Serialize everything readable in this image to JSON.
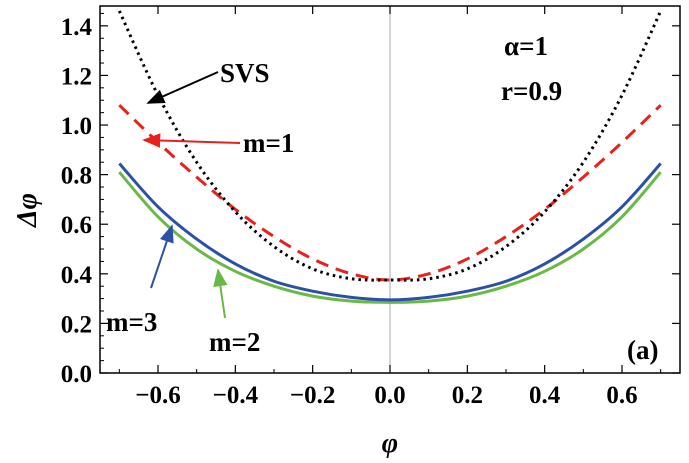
{
  "chart_data": {
    "type": "line",
    "xlabel": "φ",
    "ylabel": "Δφ",
    "xlim": [
      -0.75,
      0.75
    ],
    "ylim": [
      0.0,
      1.48
    ],
    "x_ticks": [
      -0.6,
      -0.4,
      -0.2,
      0.0,
      0.2,
      0.4,
      0.6
    ],
    "x_tick_labels": [
      "−0.6",
      "−0.4",
      "−0.2",
      "0.0",
      "0.2",
      "0.4",
      "0.6"
    ],
    "y_ticks": [
      0.0,
      0.2,
      0.4,
      0.6,
      0.8,
      1.0,
      1.2,
      1.4
    ],
    "y_tick_labels": [
      "0.0",
      "0.2",
      "0.4",
      "0.6",
      "0.8",
      "1.0",
      "1.2",
      "1.4"
    ],
    "x": [
      -0.7,
      -0.6,
      -0.5,
      -0.4,
      -0.3,
      -0.2,
      -0.1,
      0.0,
      0.1,
      0.2,
      0.3,
      0.4,
      0.5,
      0.6,
      0.7
    ],
    "series": [
      {
        "name": "SVS",
        "color": "#000000",
        "style": "dotted",
        "values": [
          1.46,
          1.12,
          0.85,
          0.65,
          0.51,
          0.42,
          0.38,
          0.375,
          0.38,
          0.42,
          0.51,
          0.65,
          0.85,
          1.12,
          1.46
        ]
      },
      {
        "name": "m=1",
        "color": "#e8211d",
        "style": "dashed",
        "values": [
          1.08,
          0.93,
          0.79,
          0.66,
          0.55,
          0.46,
          0.4,
          0.375,
          0.4,
          0.46,
          0.55,
          0.66,
          0.79,
          0.93,
          1.08
        ]
      },
      {
        "name": "m=3",
        "color": "#2c4fa8",
        "style": "solid",
        "values": [
          0.845,
          0.67,
          0.54,
          0.44,
          0.37,
          0.33,
          0.305,
          0.295,
          0.305,
          0.33,
          0.37,
          0.44,
          0.54,
          0.67,
          0.845
        ]
      },
      {
        "name": "m=2",
        "color": "#6ab845",
        "style": "solid",
        "values": [
          0.81,
          0.63,
          0.5,
          0.41,
          0.35,
          0.31,
          0.29,
          0.285,
          0.29,
          0.31,
          0.35,
          0.41,
          0.5,
          0.63,
          0.81
        ]
      }
    ],
    "annotations": {
      "svs": {
        "text": "SVS",
        "arrow_color": "#000000"
      },
      "m1": {
        "text": "m=1",
        "arrow_color": "#e8211d"
      },
      "m3": {
        "text": "m=3",
        "arrow_color": "#2c4fa8"
      },
      "m2": {
        "text": "m=2",
        "arrow_color": "#6ab845"
      },
      "alpha": "α=1",
      "r": "r=0.9",
      "panel": "(a)"
    },
    "grid": false,
    "center_line_at_x": 0.0
  }
}
